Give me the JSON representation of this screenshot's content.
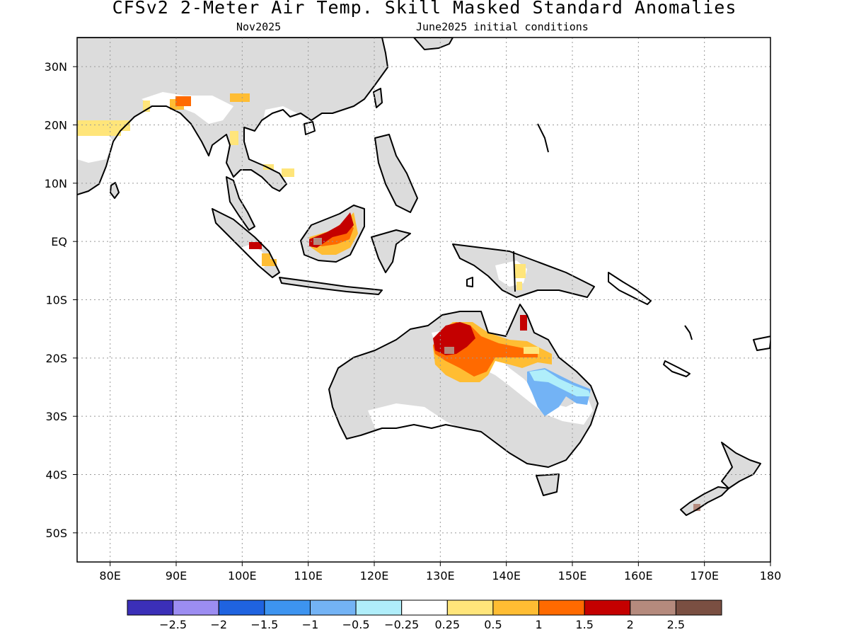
{
  "header": {
    "title": "CFSv2 2-Meter Air Temp. Skill Masked Standard Anomalies",
    "valid_month": "Nov2025",
    "init_conditions": "June2025 initial conditions"
  },
  "axes": {
    "lat_labels": [
      "30N",
      "20N",
      "10N",
      "EQ",
      "10S",
      "20S",
      "30S",
      "40S",
      "50S"
    ],
    "lon_labels": [
      "80E",
      "90E",
      "100E",
      "110E",
      "120E",
      "130E",
      "140E",
      "150E",
      "160E",
      "170E",
      "180"
    ],
    "lon_range": [
      75,
      180
    ],
    "lat_range": [
      -55,
      35
    ],
    "grid": true
  },
  "colorbar": {
    "labels": [
      "-2.5",
      "-2",
      "-1.5",
      "-1",
      "-0.5",
      "-0.25",
      "0.25",
      "0.5",
      "1",
      "1.5",
      "2",
      "2.5"
    ],
    "colors": [
      "#3b2fb8",
      "#9c8df2",
      "#1f63e0",
      "#3d94f0",
      "#73b3f5",
      "#b0eefa",
      "#ffffff",
      "#ffe57a",
      "#ffbd33",
      "#ff6a00",
      "#c40000",
      "#b58a7d",
      "#7a4f42"
    ]
  },
  "legend_colors": {
    "land": "#dcdcdc",
    "coast": "#000000"
  },
  "anomaly_regions": [
    {
      "name": "northern-australia-strong-warm",
      "color": "#c40000",
      "level": "1.5 to 2"
    },
    {
      "name": "northern-australia-warm",
      "color": "#ff6a00",
      "level": "1 to 1.5"
    },
    {
      "name": "central-australia-moderate-warm",
      "color": "#ffbd33",
      "level": "0.5 to 1"
    },
    {
      "name": "queensland-cool",
      "color": "#73b3f5",
      "level": "-1 to -0.5"
    },
    {
      "name": "borneo-warm",
      "color": "#c40000",
      "level": "1.5 to 2"
    },
    {
      "name": "bangladesh-warm",
      "color": "#ff6a00",
      "level": "1 to 1.5"
    },
    {
      "name": "india-mild-warm",
      "color": "#ffe57a",
      "level": "0.25 to 0.5"
    }
  ]
}
